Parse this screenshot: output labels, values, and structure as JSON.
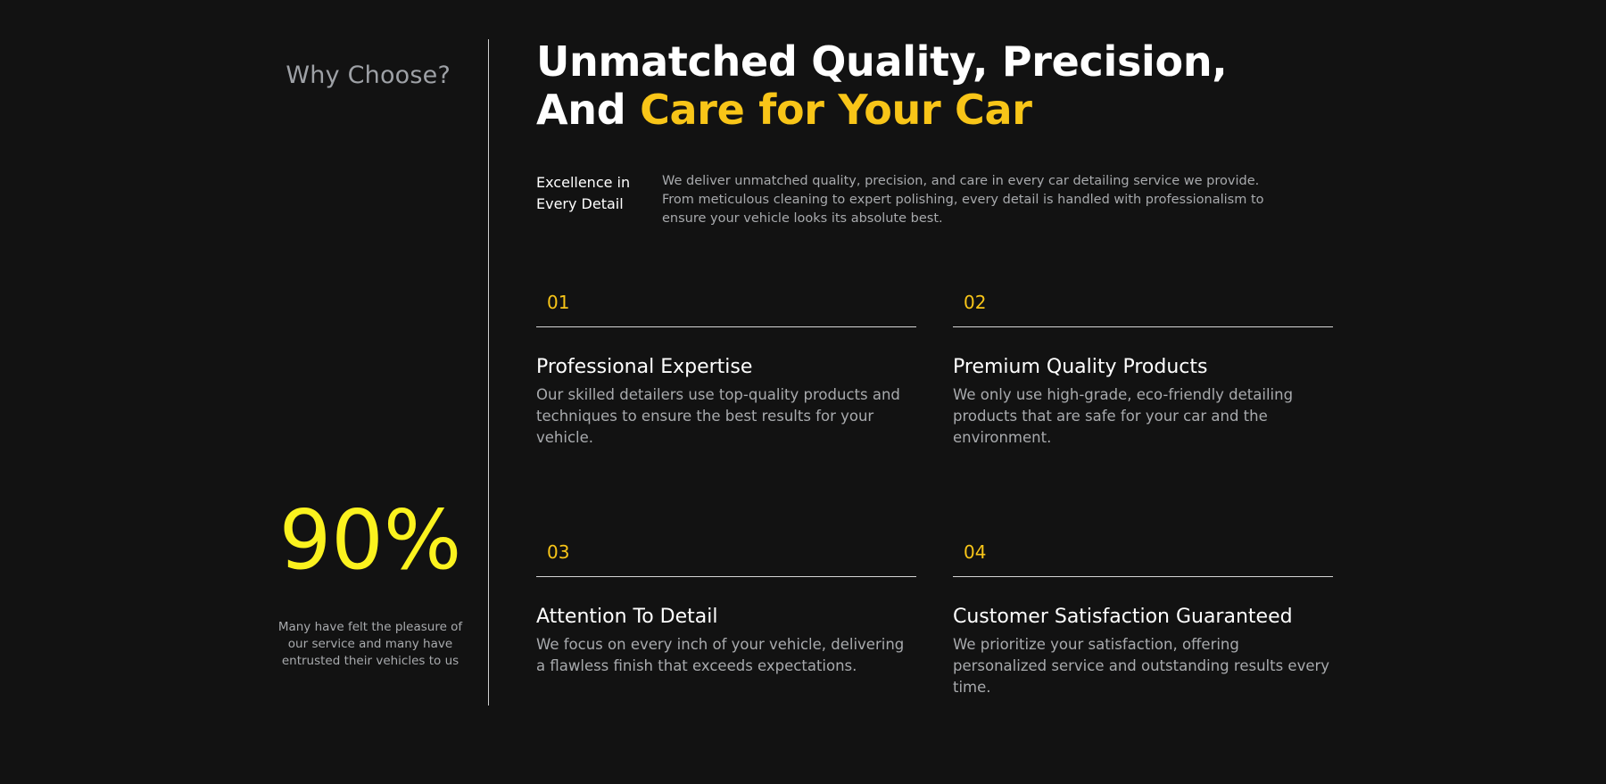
{
  "sidebar": {
    "heading": "Why Choose?",
    "stat_value": "90%",
    "stat_text": "Many have felt the pleasure of our service and many have entrusted their vehicles to us"
  },
  "hero": {
    "line1": "Unmatched Quality, Precision,",
    "line2_prefix": "And ",
    "line2_highlight": "Care for Your Car",
    "subtitle": "Excellence in Every Detail",
    "intro": "We deliver unmatched quality, precision, and care in every car detailing service we provide. From meticulous cleaning to expert polishing, every detail is handled with professionalism to ensure your vehicle looks its absolute best."
  },
  "features": [
    {
      "number": "01",
      "title": "Professional Expertise",
      "description": "Our skilled detailers use top-quality products and techniques to ensure the best results for your vehicle."
    },
    {
      "number": "02",
      "title": "Premium Quality Products",
      "description": "We only use high-grade, eco-friendly detailing products that are safe for your car and the environment."
    },
    {
      "number": "03",
      "title": "Attention To Detail",
      "description": "We focus on every inch of your vehicle, delivering a flawless finish that exceeds expectations."
    },
    {
      "number": "04",
      "title": "Customer Satisfaction Guaranteed",
      "description": "We prioritize your satisfaction, offering personalized service and outstanding results every time."
    }
  ],
  "colors": {
    "background": "#121212",
    "accent_yellow": "#f8c518",
    "stat_yellow": "#fbf21e",
    "muted_text": "#a8aaad"
  }
}
